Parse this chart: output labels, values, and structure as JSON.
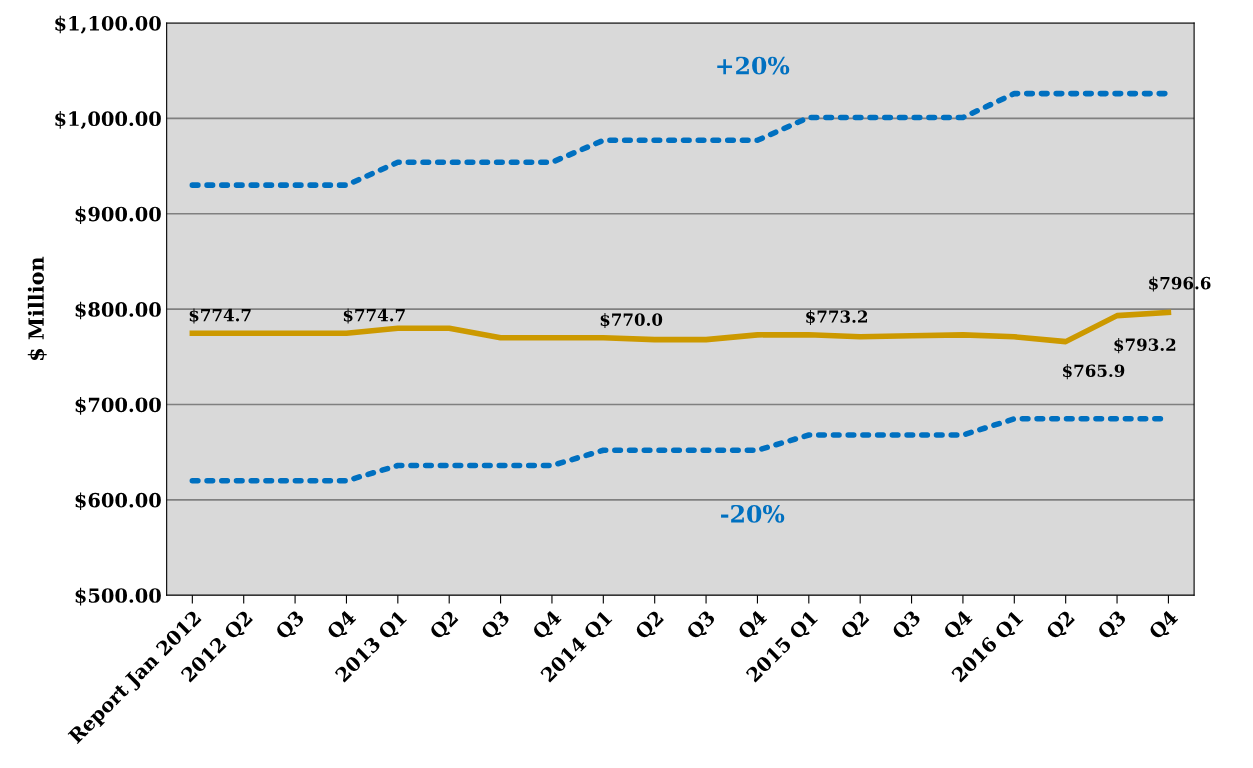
{
  "chart_data": {
    "type": "line",
    "ylabel": "$ Million",
    "categories": [
      "Report Jan 2012",
      "2012 Q2",
      "Q3",
      "Q4",
      "2013 Q1",
      "Q2",
      "Q3",
      "Q4",
      "2014 Q1",
      "Q2",
      "Q3",
      "Q4",
      "2015 Q1",
      "Q2",
      "Q3",
      "Q4",
      "2016 Q1",
      "Q2",
      "Q3",
      "Q4"
    ],
    "series": [
      {
        "color": "#0070c0",
        "line_style": "dotted",
        "values": [
          930,
          930,
          930,
          930,
          954,
          954,
          954,
          954,
          977,
          977,
          977,
          977,
          1001,
          1001,
          1001,
          1001,
          1026,
          1026,
          1026,
          1026
        ]
      },
      {
        "color": "#cc9900",
        "line_style": "solid",
        "values": [
          774.7,
          774.7,
          774.7,
          774.7,
          780,
          780,
          770,
          770,
          770.0,
          768,
          768,
          773,
          773.2,
          771,
          772,
          773,
          771,
          765.9,
          793.2,
          796.6
        ],
        "value_labels": [
          "$774.7",
          null,
          null,
          "$774.7",
          null,
          null,
          null,
          null,
          "$770.0",
          null,
          null,
          null,
          "$773.2",
          null,
          null,
          null,
          null,
          "$765.9",
          "$793.2",
          "$796.6"
        ]
      },
      {
        "color": "#0070c0",
        "line_style": "dotted",
        "values": [
          620,
          620,
          620,
          620,
          636,
          636,
          636,
          636,
          652,
          652,
          652,
          652,
          668,
          668,
          668,
          668,
          685,
          685,
          685,
          685
        ]
      }
    ],
    "annotations": [
      "+20%",
      "-20%"
    ],
    "ylim": [
      500,
      1100
    ],
    "yticks": [
      {
        "value": 500,
        "label": "$500.00"
      },
      {
        "value": 600,
        "label": "$600.00"
      },
      {
        "value": 700,
        "label": "$700.00"
      },
      {
        "value": 800,
        "label": "$800.00"
      },
      {
        "value": 900,
        "label": "$900.00"
      },
      {
        "value": 1000,
        "label": "$1,000.00"
      },
      {
        "value": 1100,
        "label": "$1,100.00"
      }
    ],
    "grid": "y",
    "legend": false
  }
}
